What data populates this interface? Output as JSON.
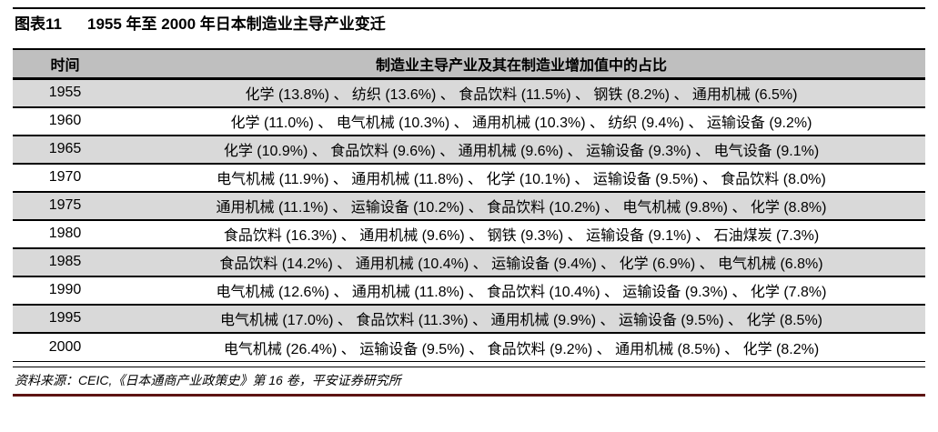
{
  "page": {
    "figure_label": "图表11",
    "title": "1955 年至 2000 年日本制造业主导产业变迁"
  },
  "table": {
    "header": {
      "time": "时间",
      "industries": "制造业主导产业及其在制造业增加值中的占比"
    },
    "separator": "、",
    "rows": [
      {
        "year": "1955",
        "industries": [
          {
            "name": "化学",
            "share": "13.8%"
          },
          {
            "name": "纺织",
            "share": "13.6%"
          },
          {
            "name": "食品饮料",
            "share": "11.5%"
          },
          {
            "name": "钢铁",
            "share": "8.2%"
          },
          {
            "name": "通用机械",
            "share": "6.5%"
          }
        ]
      },
      {
        "year": "1960",
        "industries": [
          {
            "name": "化学",
            "share": "11.0%"
          },
          {
            "name": "电气机械",
            "share": "10.3%"
          },
          {
            "name": "通用机械",
            "share": "10.3%"
          },
          {
            "name": "纺织",
            "share": "9.4%"
          },
          {
            "name": "运输设备",
            "share": "9.2%"
          }
        ]
      },
      {
        "year": "1965",
        "industries": [
          {
            "name": "化学",
            "share": "10.9%"
          },
          {
            "name": "食品饮料",
            "share": "9.6%"
          },
          {
            "name": "通用机械",
            "share": "9.6%"
          },
          {
            "name": "运输设备",
            "share": "9.3%"
          },
          {
            "name": "电气设备",
            "share": "9.1%"
          }
        ]
      },
      {
        "year": "1970",
        "industries": [
          {
            "name": "电气机械",
            "share": "11.9%"
          },
          {
            "name": "通用机械",
            "share": "11.8%"
          },
          {
            "name": "化学",
            "share": "10.1%"
          },
          {
            "name": "运输设备",
            "share": "9.5%"
          },
          {
            "name": "食品饮料",
            "share": "8.0%"
          }
        ]
      },
      {
        "year": "1975",
        "industries": [
          {
            "name": "通用机械",
            "share": "11.1%"
          },
          {
            "name": "运输设备",
            "share": "10.2%"
          },
          {
            "name": "食品饮料",
            "share": "10.2%"
          },
          {
            "name": "电气机械",
            "share": "9.8%"
          },
          {
            "name": "化学",
            "share": "8.8%"
          }
        ]
      },
      {
        "year": "1980",
        "industries": [
          {
            "name": "食品饮料",
            "share": "16.3%"
          },
          {
            "name": "通用机械",
            "share": "9.6%"
          },
          {
            "name": "钢铁",
            "share": "9.3%"
          },
          {
            "name": "运输设备",
            "share": "9.1%"
          },
          {
            "name": "石油煤炭",
            "share": "7.3%"
          }
        ]
      },
      {
        "year": "1985",
        "industries": [
          {
            "name": "食品饮料",
            "share": "14.2%"
          },
          {
            "name": "通用机械",
            "share": "10.4%"
          },
          {
            "name": "运输设备",
            "share": "9.4%"
          },
          {
            "name": "化学",
            "share": "6.9%"
          },
          {
            "name": "电气机械",
            "share": "6.8%"
          }
        ]
      },
      {
        "year": "1990",
        "industries": [
          {
            "name": "电气机械",
            "share": "12.6%"
          },
          {
            "name": "通用机械",
            "share": "11.8%"
          },
          {
            "name": "食品饮料",
            "share": "10.4%"
          },
          {
            "name": "运输设备",
            "share": "9.3%"
          },
          {
            "name": "化学",
            "share": "7.8%"
          }
        ]
      },
      {
        "year": "1995",
        "industries": [
          {
            "name": "电气机械",
            "share": "17.0%"
          },
          {
            "name": "食品饮料",
            "share": "11.3%"
          },
          {
            "name": "通用机械",
            "share": "9.9%"
          },
          {
            "name": "运输设备",
            "share": "9.5%"
          },
          {
            "name": "化学",
            "share": "8.5%"
          }
        ]
      },
      {
        "year": "2000",
        "industries": [
          {
            "name": "电气机械",
            "share": "26.4%"
          },
          {
            "name": "运输设备",
            "share": "9.5%"
          },
          {
            "name": "食品饮料",
            "share": "9.2%"
          },
          {
            "name": "通用机械",
            "share": "8.5%"
          },
          {
            "name": "化学",
            "share": "8.2%"
          }
        ]
      }
    ]
  },
  "footer": {
    "source": "资料来源：CEIC,《日本通商产业政策史》第 16 卷，平安证券研究所"
  },
  "colors": {
    "header_bg": "#BFBFBF",
    "zebra_bg": "#D9D9D9",
    "rule": "#000000",
    "bottom_rule": "#5D1413"
  }
}
